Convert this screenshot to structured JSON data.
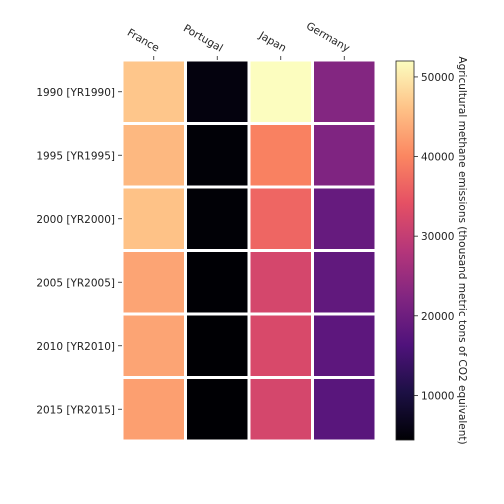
{
  "chart_data": {
    "type": "heatmap",
    "title": "",
    "xlabel": "",
    "ylabel": "",
    "x_categories": [
      "France",
      "Portugal",
      "Japan",
      "Germany"
    ],
    "y_categories": [
      "1990 [YR1990]",
      "1995 [YR1995]",
      "2000 [YR2000]",
      "2005 [YR2005]",
      "2010 [YR2010]",
      "2015 [YR2015]"
    ],
    "values": [
      [
        46500,
        5300,
        52000,
        22500
      ],
      [
        45000,
        4700,
        39500,
        22000
      ],
      [
        46000,
        4600,
        36500,
        19000
      ],
      [
        43000,
        4500,
        32000,
        18500
      ],
      [
        43000,
        4400,
        32500,
        18000
      ],
      [
        42500,
        4400,
        32000,
        17500
      ]
    ],
    "colorbar": {
      "label": "Agricultural methane emissions (thousand metric tons of CO2 equivalent)",
      "min": 4400,
      "max": 52000,
      "ticks": [
        10000,
        20000,
        30000,
        40000,
        50000
      ],
      "colormap": "magma"
    },
    "x_tick_position": "top",
    "x_tick_rotation_deg": -30,
    "grid": false
  }
}
